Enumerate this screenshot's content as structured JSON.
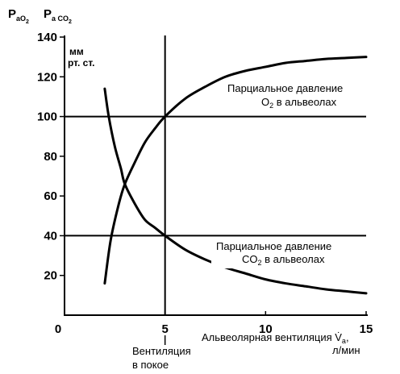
{
  "chart_data": {
    "type": "line",
    "ylabel": {
      "p1_main": "P",
      "p1_sub": "aO",
      "p1_subsub": "2",
      "p2_main": "P",
      "p2_sub": "a CO",
      "p2_subsub": "2"
    },
    "yunit_line1": "мм",
    "yunit_line2": "рт. ст.",
    "xlabel_line1": "Альвеолярная вентиляция V̇",
    "xlabel_sub": "a",
    "xlabel_suffix": ",",
    "xlabel_line2": "л/мин",
    "xlim": [
      0,
      15
    ],
    "ylim": [
      0,
      140
    ],
    "x_ticks": [
      "0",
      "5",
      "10",
      "15"
    ],
    "y_ticks": [
      "20",
      "40",
      "60",
      "80",
      "100",
      "120",
      "140"
    ],
    "series": [
      {
        "name": "O2",
        "label_line1": "Парциальное давление",
        "label_line2_pre": "O",
        "label_line2_sub": "2",
        "label_line2_post": " в альвеолах",
        "x": [
          2.0,
          2.3,
          2.7,
          3.0,
          3.5,
          4.0,
          4.5,
          5.0,
          6.0,
          7.0,
          8.0,
          9.0,
          10.0,
          11.0,
          12.0,
          13.0,
          14.0,
          15.0
        ],
        "y": [
          16,
          38,
          56,
          66,
          77,
          87,
          94,
          100,
          109,
          115,
          120,
          123,
          125,
          127,
          128,
          129,
          129.5,
          130
        ]
      },
      {
        "name": "CO2",
        "label_line1": "Парциальное давление",
        "label_line2_pre": "CO",
        "label_line2_sub": "2",
        "label_line2_post": " в альвеолах",
        "x": [
          2.0,
          2.2,
          2.5,
          2.8,
          3.0,
          3.5,
          4.0,
          4.5,
          5.0,
          6.0,
          7.0,
          8.0,
          9.0,
          10.0,
          11.0,
          12.0,
          13.0,
          14.0,
          15.0
        ],
        "y": [
          114,
          100,
          85,
          74,
          66,
          56,
          48,
          44,
          40,
          33,
          28,
          24,
          21,
          18,
          16,
          14.5,
          13,
          12,
          11
        ]
      }
    ],
    "reference_lines": {
      "vertical_x": 5,
      "horizontal_y": [
        40,
        100
      ]
    },
    "annotation_line1": "Вентиляция",
    "annotation_line2": "в покое",
    "grid": false
  }
}
